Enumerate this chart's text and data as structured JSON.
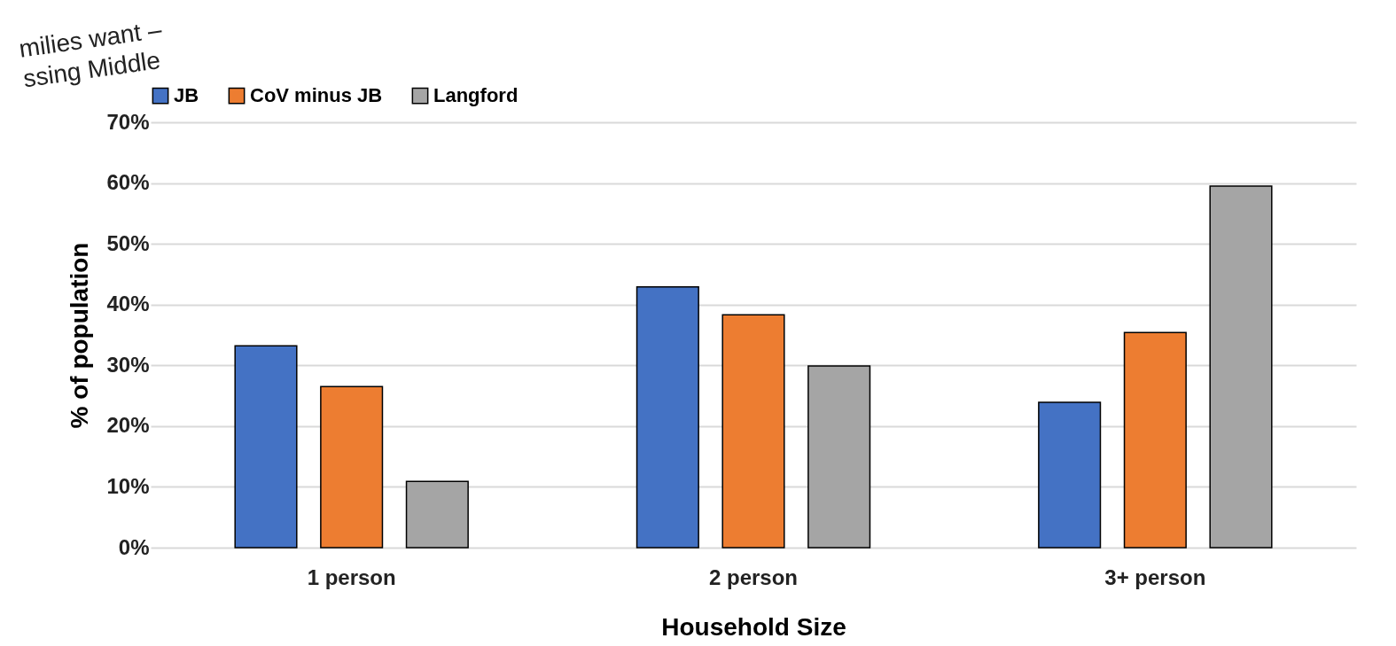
{
  "chart_data": {
    "type": "bar",
    "xlabel": "Household Size",
    "ylabel": "% of population",
    "categories": [
      "1 person",
      "2 person",
      "3+ person"
    ],
    "series": [
      {
        "name": "JB",
        "color": "#4472c4",
        "values": [
          33.2,
          42.9,
          23.9
        ]
      },
      {
        "name": "CoV minus JB",
        "color": "#ed7d31",
        "values": [
          26.5,
          38.3,
          35.4
        ]
      },
      {
        "name": "Langford",
        "color": "#a5a5a5",
        "values": [
          10.9,
          29.9,
          59.5
        ]
      }
    ],
    "ylim": [
      0,
      70
    ],
    "yticks": [
      {
        "value": 0,
        "label": "0%"
      },
      {
        "value": 10,
        "label": "10%"
      },
      {
        "value": 20,
        "label": "20%"
      },
      {
        "value": 30,
        "label": "30%"
      },
      {
        "value": 40,
        "label": "40%"
      },
      {
        "value": 50,
        "label": "50%"
      },
      {
        "value": 60,
        "label": "60%"
      },
      {
        "value": 70,
        "label": "70%"
      }
    ],
    "grid": "y",
    "legend": "top",
    "annotations": [
      "milies want –\nssing Middle"
    ]
  }
}
